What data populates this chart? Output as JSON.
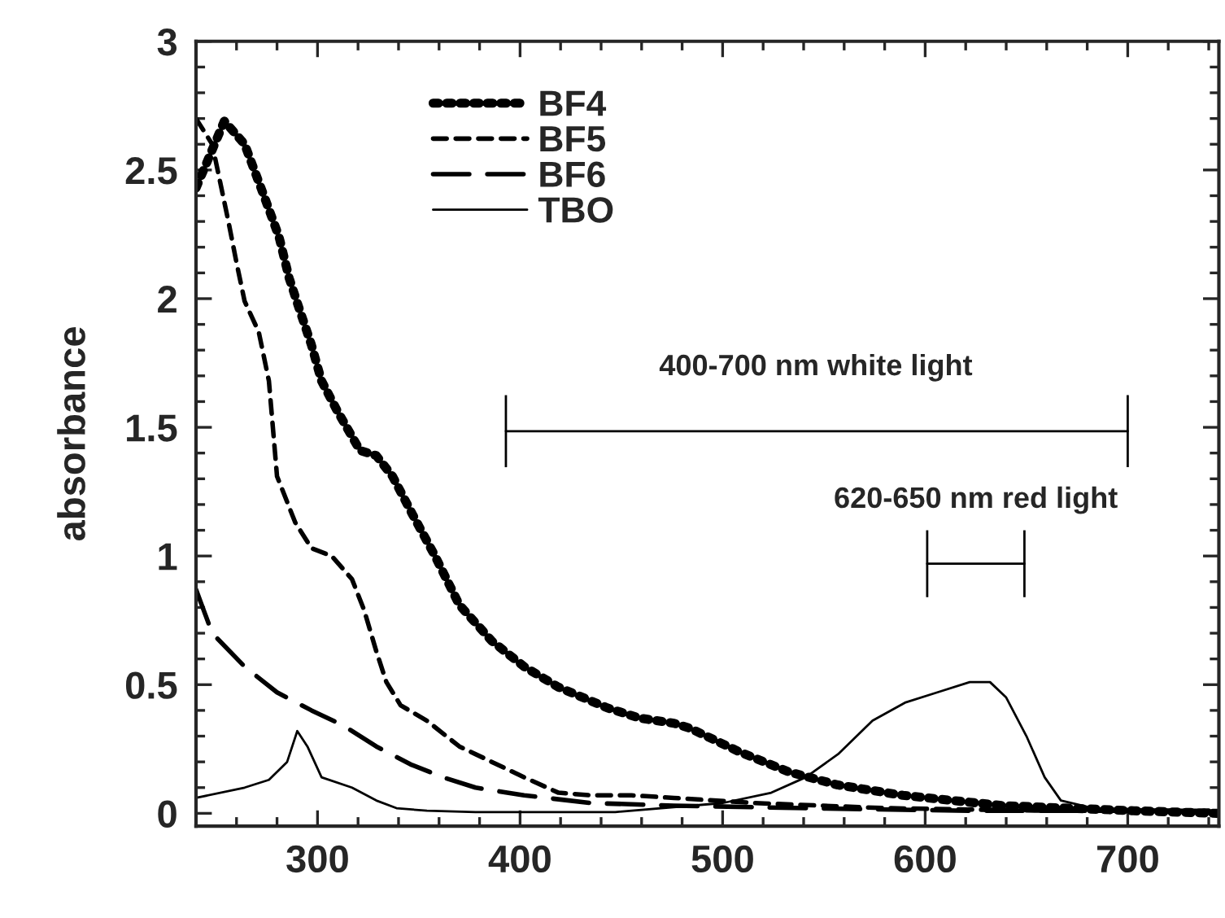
{
  "chart_data": {
    "type": "line",
    "ylabel": "absorbance",
    "xlim": [
      240,
      745
    ],
    "ylim": [
      -0.05,
      3
    ],
    "xticks": [
      {
        "value": 240,
        "label": null
      },
      {
        "value": 260,
        "label": null
      },
      {
        "value": 280,
        "label": null
      },
      300,
      {
        "value": 320,
        "label": null
      },
      {
        "value": 340,
        "label": null
      },
      {
        "value": 360,
        "label": null
      },
      {
        "value": 380,
        "label": null
      },
      400,
      {
        "value": 420,
        "label": null
      },
      {
        "value": 440,
        "label": null
      },
      {
        "value": 460,
        "label": null
      },
      {
        "value": 480,
        "label": null
      },
      500,
      {
        "value": 520,
        "label": null
      },
      {
        "value": 540,
        "label": null
      },
      {
        "value": 560,
        "label": null
      },
      {
        "value": 580,
        "label": null
      },
      600,
      {
        "value": 620,
        "label": null
      },
      {
        "value": 640,
        "label": null
      },
      {
        "value": 660,
        "label": null
      },
      {
        "value": 680,
        "label": null
      },
      700,
      {
        "value": 720,
        "label": null
      },
      {
        "value": 740,
        "label": null
      }
    ],
    "yticks": [
      0,
      {
        "value": 0.1,
        "label": null
      },
      {
        "value": 0.2,
        "label": null
      },
      {
        "value": 0.3,
        "label": null
      },
      {
        "value": 0.4,
        "label": null
      },
      0.5,
      {
        "value": 0.6,
        "label": null
      },
      {
        "value": 0.7,
        "label": null
      },
      {
        "value": 0.8,
        "label": null
      },
      {
        "value": 0.9,
        "label": null
      },
      1,
      {
        "value": 1.1,
        "label": null
      },
      {
        "value": 1.2,
        "label": null
      },
      {
        "value": 1.3,
        "label": null
      },
      {
        "value": 1.4,
        "label": null
      },
      1.5,
      {
        "value": 1.6,
        "label": null
      },
      {
        "value": 1.7,
        "label": null
      },
      {
        "value": 1.8,
        "label": null
      },
      {
        "value": 1.9,
        "label": null
      },
      2,
      {
        "value": 2.1,
        "label": null
      },
      {
        "value": 2.2,
        "label": null
      },
      {
        "value": 2.3,
        "label": null
      },
      {
        "value": 2.4,
        "label": null
      },
      2.5,
      {
        "value": 2.6,
        "label": null
      },
      {
        "value": 2.7,
        "label": null
      },
      {
        "value": 2.8,
        "label": null
      },
      {
        "value": 2.9,
        "label": null
      },
      3
    ],
    "grid": false,
    "legend": "top left",
    "annotations": [
      {
        "text": "400-700 nm white light",
        "x": 546,
        "y": 1.485
      },
      {
        "text": "620-650 nm red light",
        "x": 625,
        "y": 0.97
      }
    ],
    "series": [
      {
        "type": "line",
        "color": "#000000",
        "line_style": "solid",
        "x": [
          393,
          700
        ],
        "values": [
          1.485,
          1.485
        ],
        "errors": [
          0.14,
          0.14
        ]
      },
      {
        "type": "line",
        "color": "#000000",
        "line_style": "solid",
        "x": [
          601,
          649
        ],
        "values": [
          0.97,
          0.97
        ],
        "errors": [
          0.13,
          0.13
        ]
      },
      {
        "name": "BF4",
        "color": "#000000",
        "line_style": "dotted",
        "x": [
          240,
          254,
          264,
          274,
          281,
          286,
          291,
          297,
          302,
          310,
          321,
          329,
          337,
          347,
          358,
          370,
          386,
          402,
          419,
          443,
          459,
          476,
          484,
          508,
          533,
          557,
          589,
          638,
          703,
          744
        ],
        "values": [
          2.43,
          2.69,
          2.6,
          2.39,
          2.24,
          2.08,
          1.96,
          1.82,
          1.68,
          1.56,
          1.41,
          1.39,
          1.31,
          1.16,
          1.0,
          0.81,
          0.67,
          0.57,
          0.49,
          0.41,
          0.37,
          0.35,
          0.33,
          0.24,
          0.16,
          0.11,
          0.07,
          0.03,
          0.01,
          0.0
        ]
      },
      {
        "name": "BF5",
        "color": "#000000",
        "line_style": "dashed",
        "x": [
          240,
          248,
          252,
          256,
          260,
          264,
          271,
          276,
          280,
          289,
          297,
          307,
          317,
          323,
          329,
          334,
          341,
          354,
          370,
          386,
          402,
          419,
          435,
          455,
          476,
          516,
          581,
          662,
          740
        ],
        "values": [
          2.7,
          2.6,
          2.45,
          2.3,
          2.14,
          1.99,
          1.87,
          1.68,
          1.31,
          1.13,
          1.03,
          1.0,
          0.91,
          0.79,
          0.63,
          0.51,
          0.42,
          0.36,
          0.26,
          0.2,
          0.14,
          0.08,
          0.07,
          0.07,
          0.06,
          0.04,
          0.02,
          0.01,
          0.01
        ]
      },
      {
        "name": "BF6",
        "color": "#000000",
        "line_style": "longdash",
        "x": [
          240,
          248,
          264,
          280,
          297,
          313,
          329,
          346,
          362,
          378,
          402,
          435,
          476,
          541,
          622,
          740
        ],
        "values": [
          0.87,
          0.7,
          0.57,
          0.47,
          0.4,
          0.34,
          0.26,
          0.19,
          0.14,
          0.1,
          0.07,
          0.04,
          0.03,
          0.02,
          0.01,
          0.01
        ]
      },
      {
        "name": "TBO",
        "color": "#000000",
        "line_style": "solid",
        "x": [
          240,
          264,
          276,
          285,
          290,
          295,
          302,
          317,
          329,
          339,
          354,
          378,
          447,
          500,
          524,
          541,
          557,
          574,
          590,
          606,
          622,
          632,
          640,
          650,
          659,
          667,
          683,
          740
        ],
        "values": [
          0.06,
          0.1,
          0.13,
          0.2,
          0.32,
          0.26,
          0.14,
          0.1,
          0.05,
          0.02,
          0.01,
          0.005,
          0.005,
          0.04,
          0.08,
          0.14,
          0.23,
          0.36,
          0.43,
          0.47,
          0.51,
          0.51,
          0.45,
          0.3,
          0.14,
          0.05,
          0.02,
          0.01
        ]
      }
    ]
  }
}
